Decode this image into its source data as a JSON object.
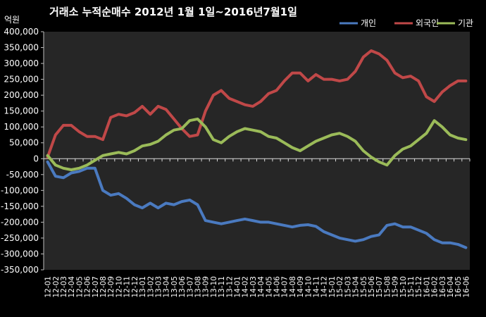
{
  "chart_data": {
    "type": "line",
    "title": "거래소 누적순매수 2012년 1월 1일~2016년7월1일",
    "unit_label": "억원",
    "ylim": [
      -350000,
      400000
    ],
    "y_ticks": [
      400000,
      350000,
      300000,
      250000,
      200000,
      150000,
      100000,
      50000,
      0,
      -50000,
      -100000,
      -150000,
      -200000,
      -250000,
      -300000,
      -350000
    ],
    "y_tick_labels": [
      "400,000",
      "350,000",
      "300,000",
      "250,000",
      "200,000",
      "150,000",
      "100,000",
      "50,000",
      "0",
      "-50,000",
      "-100,000",
      "-150,000",
      "-200,000",
      "-250,000",
      "-300,000",
      "-350,000"
    ],
    "x_labels": [
      "12-01",
      "12-02",
      "12-03",
      "12-04",
      "12-05",
      "12-06",
      "12-07",
      "12-08",
      "12-09",
      "12-10",
      "12-11",
      "12-12",
      "13-01",
      "13-02",
      "13-03",
      "13-04",
      "13-05",
      "13-06",
      "13-07",
      "13-08",
      "13-09",
      "13-10",
      "13-11",
      "13-12",
      "14-01",
      "14-02",
      "14-03",
      "14-04",
      "14-05",
      "14-06",
      "14-07",
      "14-08",
      "14-09",
      "14-10",
      "14-11",
      "14-12",
      "15-01",
      "15-02",
      "15-03",
      "15-04",
      "15-05",
      "15-06",
      "15-07",
      "15-08",
      "15-09",
      "15-10",
      "15-11",
      "15-12",
      "16-01",
      "16-02",
      "16-03",
      "16-04",
      "16-05",
      "16-06"
    ],
    "grid": false,
    "legend_position": "top-right",
    "series": [
      {
        "name": "개인",
        "color": "#4a7ac0",
        "values": [
          -10000,
          -55000,
          -60000,
          -45000,
          -40000,
          -30000,
          -30000,
          -100000,
          -115000,
          -110000,
          -125000,
          -145000,
          -155000,
          -140000,
          -155000,
          -140000,
          -145000,
          -135000,
          -130000,
          -145000,
          -195000,
          -200000,
          -205000,
          -200000,
          -195000,
          -190000,
          -195000,
          -200000,
          -200000,
          -205000,
          -210000,
          -215000,
          -210000,
          -208000,
          -213000,
          -230000,
          -240000,
          -250000,
          -255000,
          -260000,
          -255000,
          -245000,
          -240000,
          -210000,
          -205000,
          -215000,
          -215000,
          -225000,
          -235000,
          -255000,
          -265000,
          -265000,
          -270000,
          -280000
        ]
      },
      {
        "name": "외국인",
        "color": "#c04848",
        "values": [
          5000,
          75000,
          105000,
          105000,
          85000,
          70000,
          70000,
          60000,
          130000,
          140000,
          135000,
          145000,
          165000,
          140000,
          165000,
          155000,
          125000,
          95000,
          70000,
          75000,
          150000,
          200000,
          215000,
          190000,
          180000,
          170000,
          165000,
          180000,
          205000,
          215000,
          245000,
          270000,
          270000,
          245000,
          265000,
          250000,
          250000,
          245000,
          250000,
          275000,
          320000,
          340000,
          330000,
          310000,
          270000,
          255000,
          260000,
          245000,
          195000,
          180000,
          210000,
          230000,
          245000,
          245000
        ]
      },
      {
        "name": "기관",
        "color": "#9bbb59",
        "values": [
          10000,
          -20000,
          -30000,
          -35000,
          -30000,
          -20000,
          -5000,
          10000,
          15000,
          20000,
          15000,
          25000,
          40000,
          45000,
          55000,
          75000,
          90000,
          95000,
          120000,
          125000,
          100000,
          60000,
          50000,
          70000,
          85000,
          95000,
          90000,
          85000,
          70000,
          65000,
          50000,
          35000,
          25000,
          40000,
          55000,
          65000,
          75000,
          80000,
          70000,
          55000,
          25000,
          5000,
          -10000,
          -20000,
          10000,
          30000,
          40000,
          60000,
          80000,
          120000,
          100000,
          75000,
          65000,
          60000
        ]
      }
    ]
  }
}
